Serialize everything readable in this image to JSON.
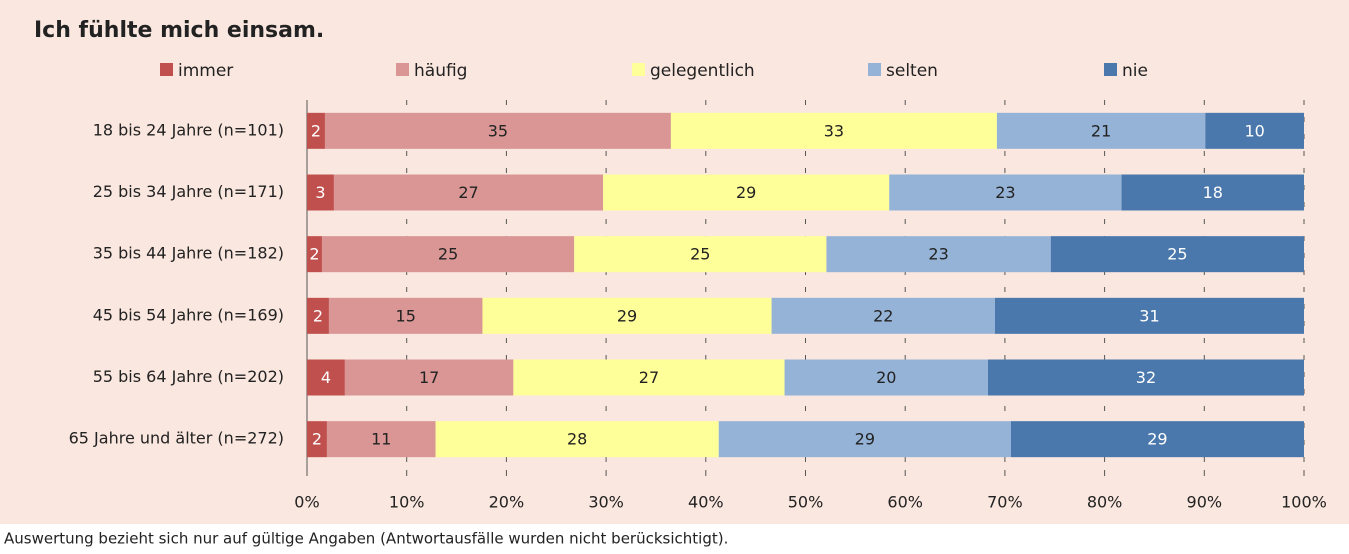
{
  "chart_data": {
    "type": "stacked_barh",
    "title": "Ich fühlte mich einsam.",
    "footnote": "Auswertung bezieht sich nur auf gültige Angaben (Antwortausfälle wurden nicht berücksichtigt).",
    "categories": [
      "18 bis 24 Jahre (n=101)",
      "25 bis 34 Jahre (n=171)",
      "35 bis 44 Jahre (n=182)",
      "45 bis 54 Jahre (n=169)",
      "55 bis 64 Jahre (n=202)",
      "65 Jahre und älter (n=272)"
    ],
    "series": [
      {
        "name": "immer",
        "color": "#c0504d",
        "label_color": "#ffffff",
        "values": [
          1.8,
          2.7,
          1.5,
          2.2,
          3.8,
          2.0
        ],
        "value_labels": [
          "2",
          "3",
          "2",
          "2",
          "4",
          "2"
        ]
      },
      {
        "name": "häufig",
        "color": "#d99694",
        "label_color": "#222222",
        "values": [
          34.7,
          27.0,
          25.3,
          15.4,
          16.9,
          10.9
        ],
        "value_labels": [
          "35",
          "27",
          "25",
          "15",
          "17",
          "11"
        ]
      },
      {
        "name": "gelegentlich",
        "color": "#ffff99",
        "label_color": "#222222",
        "values": [
          32.7,
          28.7,
          25.3,
          29.0,
          27.2,
          28.4
        ],
        "value_labels": [
          "33",
          "29",
          "25",
          "29",
          "27",
          "28"
        ]
      },
      {
        "name": "selten",
        "color": "#95b3d7",
        "label_color": "#222222",
        "values": [
          20.9,
          23.3,
          22.5,
          22.4,
          20.4,
          29.3
        ],
        "value_labels": [
          "21",
          "23",
          "23",
          "22",
          "20",
          "29"
        ]
      },
      {
        "name": "nie",
        "color": "#4a78ac",
        "label_color": "#ffffff",
        "values": [
          9.9,
          18.3,
          25.4,
          31.0,
          31.7,
          29.4
        ],
        "value_labels": [
          "10",
          "18",
          "25",
          "31",
          "32",
          "29"
        ]
      }
    ],
    "xlim": [
      0,
      100
    ],
    "xticks": [
      {
        "value": 0,
        "label": "0%"
      },
      {
        "value": 10,
        "label": "10%"
      },
      {
        "value": 20,
        "label": "20%"
      },
      {
        "value": 30,
        "label": "30%"
      },
      {
        "value": 40,
        "label": "40%"
      },
      {
        "value": 50,
        "label": "50%"
      },
      {
        "value": 60,
        "label": "60%"
      },
      {
        "value": 70,
        "label": "70%"
      },
      {
        "value": 80,
        "label": "80%"
      },
      {
        "value": 90,
        "label": "90%"
      },
      {
        "value": 100,
        "label": "100%"
      }
    ],
    "grid": true,
    "legend": "top",
    "background": "#fae7df"
  }
}
